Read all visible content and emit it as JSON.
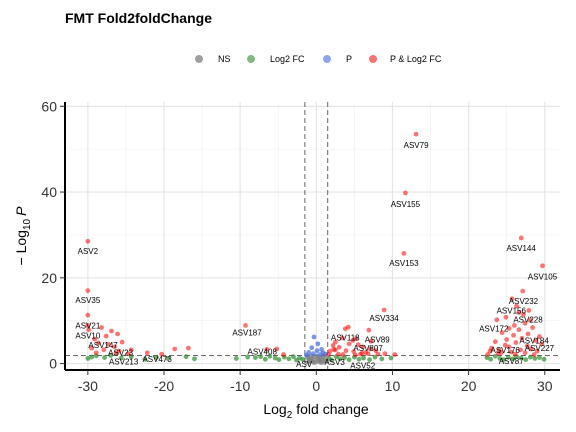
{
  "chart_data": {
    "type": "scatter",
    "title": "FMT Fold2foldChange",
    "xlabel": "fold change",
    "xlabel_prefix": "Log",
    "xlabel_sub": "2",
    "ylabel_prefix": "− Log",
    "ylabel_sub": "10",
    "ylabel_var": "P",
    "xlim": [
      -33,
      32
    ],
    "ylim": [
      -1.5,
      61
    ],
    "xticks": [
      -30,
      -20,
      -10,
      0,
      10,
      20,
      30
    ],
    "yticks": [
      0,
      20,
      40,
      60
    ],
    "grid": true,
    "legend_position": "top",
    "thresholds": {
      "x": [
        -1.5,
        1.5
      ],
      "y": 1.9
    },
    "legend": [
      {
        "label": "NS",
        "color": "#7f7f7f"
      },
      {
        "label": "Log2 FC",
        "color": "#2e8b2e"
      },
      {
        "label": "P",
        "color": "#4169e1"
      },
      {
        "label": "P & Log2 FC",
        "color": "#ff0000"
      }
    ],
    "series": [
      {
        "name": "P & Log2 FC",
        "color": "#ff0000",
        "points": [
          [
            13.1,
            53.5
          ],
          [
            11.7,
            39.8
          ],
          [
            11.5,
            25.7
          ],
          [
            8.9,
            12.5
          ],
          [
            6.9,
            7.8
          ],
          [
            4.2,
            8.5
          ],
          [
            3.8,
            8.1
          ],
          [
            5.5,
            4.4
          ],
          [
            3.4,
            6.0
          ],
          [
            4.8,
            5.4
          ],
          [
            2.5,
            5.0
          ],
          [
            7.2,
            5.2
          ],
          [
            2.3,
            3.3
          ],
          [
            6.1,
            3.9
          ],
          [
            3.0,
            3.8
          ],
          [
            9.0,
            2.3
          ],
          [
            2.5,
            3.2
          ],
          [
            4.3,
            4.6
          ],
          [
            5.2,
            5.8
          ],
          [
            1.8,
            2.9
          ],
          [
            2.2,
            4.2
          ],
          [
            6.5,
            2.6
          ],
          [
            7.8,
            3.0
          ],
          [
            5.8,
            2.2
          ],
          [
            3.5,
            2.1
          ],
          [
            8.1,
            2.2
          ],
          [
            10.3,
            2.1
          ],
          [
            4.9,
            2.8
          ],
          [
            6.0,
            2.4
          ],
          [
            7.1,
            3.4
          ],
          [
            2.9,
            2.2
          ],
          [
            3.9,
            3.0
          ],
          [
            6.8,
            2.3
          ],
          [
            1.6,
            2.1
          ],
          [
            5.1,
            2.0
          ],
          [
            26.9,
            29.3
          ],
          [
            29.7,
            22.8
          ],
          [
            27.1,
            16.9
          ],
          [
            25.7,
            15.1
          ],
          [
            26.3,
            13.4
          ],
          [
            27.2,
            11.5
          ],
          [
            24.9,
            10.8
          ],
          [
            28.1,
            10.1
          ],
          [
            23.7,
            10.2
          ],
          [
            26.0,
            8.9
          ],
          [
            27.4,
            9.4
          ],
          [
            25.3,
            8.2
          ],
          [
            26.6,
            7.9
          ],
          [
            28.4,
            8.4
          ],
          [
            27.8,
            6.9
          ],
          [
            29.3,
            6.3
          ],
          [
            24.4,
            7.2
          ],
          [
            25.9,
            6.6
          ],
          [
            28.8,
            5.4
          ],
          [
            27.0,
            5.9
          ],
          [
            23.5,
            5.1
          ],
          [
            29.6,
            4.6
          ],
          [
            26.2,
            4.9
          ],
          [
            24.8,
            4.3
          ],
          [
            25.3,
            3.9
          ],
          [
            27.7,
            4.1
          ],
          [
            23.0,
            3.6
          ],
          [
            28.2,
            3.4
          ],
          [
            24.0,
            3.1
          ],
          [
            26.8,
            3.2
          ],
          [
            29.0,
            2.9
          ],
          [
            22.8,
            2.9
          ],
          [
            25.6,
            2.7
          ],
          [
            27.4,
            2.5
          ],
          [
            23.9,
            2.3
          ],
          [
            24.3,
            2.6
          ],
          [
            22.5,
            2.1
          ],
          [
            26.1,
            2.2
          ],
          [
            28.6,
            2.1
          ],
          [
            25.0,
            5.6
          ],
          [
            26.6,
            11.9
          ],
          [
            27.9,
            12.4
          ],
          [
            -30.0,
            28.5
          ],
          [
            -30.0,
            17.0
          ],
          [
            -30.0,
            11.3
          ],
          [
            -30.0,
            8.9
          ],
          [
            -29.9,
            7.9
          ],
          [
            -28.2,
            8.4
          ],
          [
            -27.6,
            6.4
          ],
          [
            -26.9,
            7.6
          ],
          [
            -26.1,
            6.9
          ],
          [
            -25.5,
            5.0
          ],
          [
            -29.1,
            5.7
          ],
          [
            -28.6,
            4.8
          ],
          [
            -27.3,
            4.5
          ],
          [
            -26.5,
            3.9
          ],
          [
            -25.9,
            2.9
          ],
          [
            -24.7,
            2.3
          ],
          [
            -29.5,
            3.6
          ],
          [
            -27.9,
            3.2
          ],
          [
            -26.3,
            2.4
          ],
          [
            -28.9,
            2.5
          ],
          [
            -24.3,
            3.2
          ],
          [
            -22.2,
            2.5
          ],
          [
            -20.3,
            2.2
          ],
          [
            -18.6,
            3.4
          ],
          [
            -16.8,
            3.6
          ],
          [
            -9.3,
            8.9
          ],
          [
            -6.5,
            3.3
          ],
          [
            -5.2,
            3.4
          ],
          [
            -4.3,
            2.1
          ]
        ]
      },
      {
        "name": "Log2 FC",
        "color": "#2e8b2e",
        "points": [
          [
            -30.0,
            1.2
          ],
          [
            -29.5,
            1.5
          ],
          [
            -28.9,
            1.8
          ],
          [
            -27.8,
            1.4
          ],
          [
            -27.0,
            1.9
          ],
          [
            -25.6,
            1.3
          ],
          [
            -24.3,
            1.6
          ],
          [
            -22.5,
            1.0
          ],
          [
            -21.0,
            1.4
          ],
          [
            -19.5,
            1.2
          ],
          [
            -17.1,
            1.6
          ],
          [
            -16.0,
            1.1
          ],
          [
            -10.5,
            1.2
          ],
          [
            -9.0,
            1.5
          ],
          [
            -8.0,
            1.4
          ],
          [
            -7.3,
            1.6
          ],
          [
            -6.7,
            1.0
          ],
          [
            -6.1,
            1.7
          ],
          [
            -5.4,
            1.3
          ],
          [
            -4.9,
            0.9
          ],
          [
            -4.2,
            1.5
          ],
          [
            -3.6,
            1.1
          ],
          [
            -3.0,
            1.6
          ],
          [
            -2.6,
            0.8
          ],
          [
            -2.2,
            1.3
          ],
          [
            -1.8,
            1.0
          ],
          [
            1.7,
            1.2
          ],
          [
            2.0,
            0.8
          ],
          [
            2.6,
            1.6
          ],
          [
            3.1,
            1.1
          ],
          [
            3.7,
            1.4
          ],
          [
            4.3,
            0.9
          ],
          [
            5.0,
            1.5
          ],
          [
            5.6,
            1.0
          ],
          [
            6.2,
            1.3
          ],
          [
            7.0,
            0.9
          ],
          [
            7.7,
            1.5
          ],
          [
            8.6,
            1.1
          ],
          [
            9.8,
            1.3
          ],
          [
            22.4,
            1.4
          ],
          [
            22.9,
            1.0
          ],
          [
            23.5,
            1.7
          ],
          [
            24.1,
            1.2
          ],
          [
            24.6,
            0.9
          ],
          [
            25.2,
            1.5
          ],
          [
            25.8,
            1.1
          ],
          [
            26.3,
            1.6
          ],
          [
            26.9,
            1.3
          ],
          [
            27.5,
            0.9
          ],
          [
            28.1,
            1.5
          ],
          [
            28.7,
            1.2
          ],
          [
            29.3,
            1.4
          ],
          [
            29.9,
            1.0
          ]
        ]
      },
      {
        "name": "P",
        "color": "#4169e1",
        "points": [
          [
            -0.3,
            6.2
          ],
          [
            0.2,
            4.6
          ],
          [
            -0.6,
            3.7
          ],
          [
            0.7,
            3.3
          ],
          [
            0.1,
            3.0
          ],
          [
            -1.0,
            2.6
          ],
          [
            0.9,
            2.5
          ],
          [
            -0.4,
            2.3
          ],
          [
            0.5,
            2.1
          ],
          [
            1.2,
            2.2
          ],
          [
            -1.3,
            2.0
          ]
        ]
      },
      {
        "name": "NS",
        "color": "#7f7f7f",
        "points": [
          [
            -1.2,
            1.5
          ],
          [
            -1.0,
            1.1
          ],
          [
            -0.8,
            0.6
          ],
          [
            -0.6,
            1.3
          ],
          [
            -0.4,
            0.9
          ],
          [
            -0.2,
            1.6
          ],
          [
            0.0,
            0.4
          ],
          [
            0.2,
            1.2
          ],
          [
            0.4,
            0.7
          ],
          [
            0.6,
            1.5
          ],
          [
            0.8,
            1.0
          ],
          [
            1.0,
            0.5
          ],
          [
            1.2,
            1.3
          ],
          [
            -1.1,
            0.3
          ],
          [
            -0.7,
            1.8
          ],
          [
            -0.3,
            0.2
          ],
          [
            0.1,
            1.8
          ],
          [
            0.5,
            0.3
          ],
          [
            0.9,
            1.7
          ],
          [
            1.3,
            0.6
          ],
          [
            -0.9,
            0.8
          ],
          [
            -0.5,
            0.5
          ],
          [
            0.3,
            0.9
          ],
          [
            0.7,
            0.2
          ]
        ]
      }
    ],
    "annotations": [
      {
        "text": "ASV79",
        "x": 13.1,
        "y": 53.5,
        "lx": 13.1,
        "ly": 51.0
      },
      {
        "text": "ASV155",
        "x": 11.7,
        "y": 39.8,
        "lx": 11.7,
        "ly": 37.2
      },
      {
        "text": "ASV153",
        "x": 11.5,
        "y": 25.7,
        "lx": 11.5,
        "ly": 23.4
      },
      {
        "text": "ASV334",
        "x": 8.9,
        "y": 12.5,
        "lx": 8.9,
        "ly": 10.6
      },
      {
        "text": "ASV118",
        "x": 3.8,
        "y": 8.1,
        "lx": 3.8,
        "ly": 6.1
      },
      {
        "text": "ASV89",
        "x": 7.2,
        "y": 5.2,
        "lx": 8.0,
        "ly": 5.6
      },
      {
        "text": "ASV807",
        "x": 6.5,
        "y": 2.6,
        "lx": 6.8,
        "ly": 3.6
      },
      {
        "text": "ASV52",
        "x": 5.8,
        "y": 2.2,
        "lx": 6.1,
        "ly": -0.4
      },
      {
        "text": "ASV3",
        "x": 2.3,
        "y": 3.3,
        "lx": 2.4,
        "ly": 0.4
      },
      {
        "text": "ASV",
        "x": 1.0,
        "y": 1.0,
        "lx": -1.6,
        "ly": -0.1
      },
      {
        "text": "ASV144",
        "x": 26.9,
        "y": 29.3,
        "lx": 26.9,
        "ly": 26.9
      },
      {
        "text": "ASV105",
        "x": 29.7,
        "y": 22.8,
        "lx": 29.7,
        "ly": 20.3
      },
      {
        "text": "ASV232",
        "x": 27.1,
        "y": 16.9,
        "lx": 27.2,
        "ly": 14.6
      },
      {
        "text": "ASV156",
        "x": 25.7,
        "y": 15.1,
        "lx": 25.6,
        "ly": 12.4
      },
      {
        "text": "ASV228",
        "x": 27.2,
        "y": 11.5,
        "lx": 27.8,
        "ly": 10.3
      },
      {
        "text": "ASV172",
        "x": 23.7,
        "y": 10.2,
        "lx": 23.3,
        "ly": 8.2
      },
      {
        "text": "ASV184",
        "x": 27.8,
        "y": 6.9,
        "lx": 28.6,
        "ly": 5.4
      },
      {
        "text": "ASV227",
        "x": 28.8,
        "y": 5.4,
        "lx": 29.3,
        "ly": 3.6
      },
      {
        "text": "ASV176",
        "x": 24.0,
        "y": 3.1,
        "lx": 24.8,
        "ly": 3.2
      },
      {
        "text": "ASV87",
        "x": 25.6,
        "y": 2.7,
        "lx": 25.6,
        "ly": 0.6
      },
      {
        "text": "ASV2",
        "x": -30.0,
        "y": 28.5,
        "lx": -30.0,
        "ly": 26.3
      },
      {
        "text": "ASV35",
        "x": -30.0,
        "y": 17.0,
        "lx": -30.0,
        "ly": 14.8
      },
      {
        "text": "ASV21",
        "x": -30.0,
        "y": 11.3,
        "lx": -30.0,
        "ly": 8.9
      },
      {
        "text": "ASV10",
        "x": -30.0,
        "y": 8.9,
        "lx": -30.0,
        "ly": 6.5
      },
      {
        "text": "ASV147",
        "x": -27.6,
        "y": 6.4,
        "lx": -28.0,
        "ly": 4.3
      },
      {
        "text": "ASV23",
        "x": -26.5,
        "y": 3.9,
        "lx": -25.7,
        "ly": 2.6
      },
      {
        "text": "ASV213",
        "x": -25.9,
        "y": 2.9,
        "lx": -25.3,
        "ly": 0.5
      },
      {
        "text": "ASV473",
        "x": -20.3,
        "y": 2.2,
        "lx": -20.9,
        "ly": 1.1
      },
      {
        "text": "ASV187",
        "x": -9.3,
        "y": 8.9,
        "lx": -9.1,
        "ly": 7.3
      },
      {
        "text": "ASV408",
        "x": -5.2,
        "y": 3.4,
        "lx": -7.1,
        "ly": 2.8
      }
    ]
  }
}
